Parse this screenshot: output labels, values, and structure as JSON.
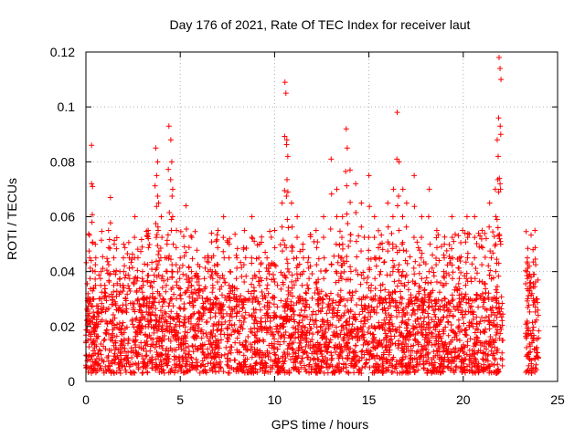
{
  "chart_data": {
    "type": "scatter",
    "title": "Day 176 of 2021, Rate Of TEC Index for receiver laut",
    "xlabel": "GPS time / hours",
    "ylabel": "ROTI / TECUs",
    "xlim": [
      0,
      25
    ],
    "ylim": [
      0,
      0.12
    ],
    "x_ticks": [
      0,
      5,
      10,
      15,
      20,
      25
    ],
    "x_tick_labels": [
      "0",
      "5",
      "10",
      "15",
      "20",
      "25"
    ],
    "y_ticks": [
      0,
      0.02,
      0.04,
      0.06,
      0.08,
      0.1,
      0.12
    ],
    "y_tick_labels": [
      "0",
      "0.02",
      "0.04",
      "0.06",
      "0.08",
      "0.1",
      "0.12"
    ],
    "grid": true,
    "marker": "+",
    "color": "#ff0000",
    "series": [
      {
        "name": "ROTI",
        "x": [
          0.1,
          0.2,
          0.3,
          0.35,
          0.4,
          0.5,
          0.6,
          0.8,
          1.0,
          1.2,
          1.3,
          1.5,
          1.8,
          2.0,
          2.3,
          2.6,
          3.0,
          3.3,
          3.7,
          3.75,
          3.8,
          3.85,
          4.0,
          4.3,
          4.4,
          4.5,
          4.55,
          4.6,
          4.8,
          5.0,
          5.3,
          5.6,
          6.0,
          6.3,
          6.7,
          7.0,
          7.3,
          7.6,
          8.0,
          8.4,
          8.8,
          9.2,
          9.6,
          10.0,
          10.4,
          10.55,
          10.6,
          10.65,
          10.7,
          10.9,
          11.2,
          11.5,
          11.8,
          12.2,
          12.6,
          13.0,
          13.3,
          13.6,
          13.8,
          13.85,
          14.0,
          14.3,
          14.6,
          15.0,
          15.3,
          15.6,
          16.0,
          16.3,
          16.5,
          16.6,
          16.8,
          17.0,
          17.4,
          17.8,
          18.2,
          18.6,
          19.0,
          19.4,
          19.8,
          20.2,
          20.6,
          21.0,
          21.4,
          21.7,
          21.8,
          21.85,
          21.9,
          21.95,
          22.0,
          23.4,
          23.5,
          23.6,
          23.7,
          23.8,
          23.9
        ],
        "y": [
          0.015,
          0.045,
          0.086,
          0.071,
          0.03,
          0.05,
          0.02,
          0.04,
          0.035,
          0.055,
          0.067,
          0.05,
          0.04,
          0.05,
          0.045,
          0.06,
          0.04,
          0.055,
          0.085,
          0.075,
          0.08,
          0.065,
          0.06,
          0.05,
          0.093,
          0.088,
          0.08,
          0.07,
          0.055,
          0.045,
          0.064,
          0.04,
          0.035,
          0.045,
          0.04,
          0.055,
          0.06,
          0.05,
          0.045,
          0.055,
          0.06,
          0.05,
          0.045,
          0.055,
          0.065,
          0.109,
          0.105,
          0.088,
          0.082,
          0.065,
          0.06,
          0.05,
          0.045,
          0.055,
          0.06,
          0.081,
          0.07,
          0.06,
          0.092,
          0.085,
          0.077,
          0.072,
          0.065,
          0.075,
          0.06,
          0.05,
          0.065,
          0.07,
          0.098,
          0.08,
          0.07,
          0.065,
          0.075,
          0.06,
          0.07,
          0.055,
          0.05,
          0.06,
          0.045,
          0.06,
          0.06,
          0.055,
          0.065,
          0.07,
          0.088,
          0.082,
          0.118,
          0.114,
          0.11,
          0.045,
          0.042,
          0.038,
          0.048,
          0.055,
          0.03
        ]
      }
    ],
    "baseline_band": {
      "description": "dense cluster of points between roughly 0.005 and 0.03 TECUs from 0 to 22 h and from 23.3 to 24 h",
      "segments": [
        [
          0,
          22.1
        ],
        [
          23.3,
          24.0
        ]
      ],
      "y_range": [
        0.003,
        0.03
      ]
    }
  }
}
